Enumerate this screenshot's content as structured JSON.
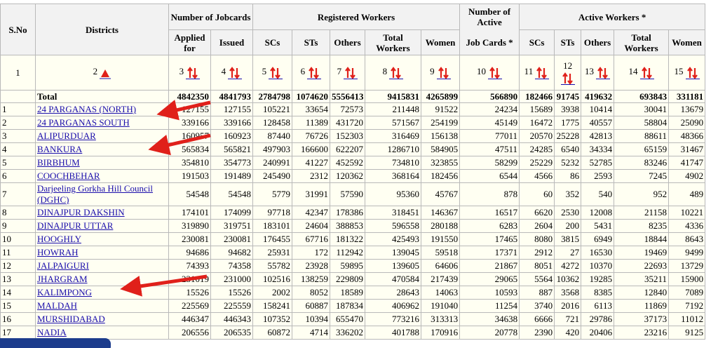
{
  "header": {
    "top": [
      "S.No",
      "Districts",
      "Number of Jobcards",
      "Registered Workers",
      "Number of Active",
      "Active Workers *"
    ],
    "sub": [
      "Applied for",
      "Issued",
      "SCs",
      "STs",
      "Others",
      "Total Workers",
      "Women",
      "Job Cards *",
      "SCs",
      "STs",
      "Others",
      "Total Workers",
      "Women"
    ],
    "index": [
      "1",
      "2",
      "3",
      "4",
      "5",
      "6",
      "7",
      "8",
      "9",
      "10",
      "11",
      "12",
      "13",
      "14",
      "15"
    ]
  },
  "total": {
    "label": "Total",
    "values": [
      4842350,
      4841793,
      2784798,
      1074620,
      5556413,
      9415831,
      4265899,
      566890,
      182466,
      91745,
      419632,
      693843,
      331181
    ]
  },
  "rows": [
    {
      "sno": "1",
      "district": "24 PARGANAS (NORTH)",
      "values": [
        127155,
        127155,
        105221,
        33654,
        72573,
        211448,
        91522,
        24234,
        15689,
        3938,
        10414,
        30041,
        13679
      ]
    },
    {
      "sno": "2",
      "district": "24 PARGANAS SOUTH",
      "values": [
        339166,
        339166,
        128458,
        11389,
        431720,
        571567,
        254199,
        45149,
        16472,
        1775,
        40557,
        58804,
        25090
      ]
    },
    {
      "sno": "3",
      "district": "ALIPURDUAR",
      "values": [
        160957,
        160923,
        87440,
        76726,
        152303,
        316469,
        156138,
        77011,
        20570,
        25228,
        42813,
        88611,
        48366
      ]
    },
    {
      "sno": "4",
      "district": "BANKURA",
      "values": [
        565834,
        565821,
        497903,
        166600,
        622207,
        1286710,
        584905,
        47511,
        24285,
        6540,
        34334,
        65159,
        31467
      ]
    },
    {
      "sno": "5",
      "district": "BIRBHUM",
      "values": [
        354810,
        354773,
        240991,
        41227,
        452592,
        734810,
        323855,
        58299,
        25229,
        5232,
        52785,
        83246,
        41747
      ]
    },
    {
      "sno": "6",
      "district": "COOCHBEHAR",
      "values": [
        191503,
        191489,
        245490,
        2312,
        120362,
        368164,
        182456,
        6544,
        4566,
        86,
        2593,
        7245,
        4902
      ]
    },
    {
      "sno": "7",
      "district": "Darjeeling Gorkha Hill Council (DGHC)",
      "values": [
        54548,
        54548,
        5779,
        31991,
        57590,
        95360,
        45767,
        878,
        60,
        352,
        540,
        952,
        489
      ]
    },
    {
      "sno": "8",
      "district": "DINAJPUR DAKSHIN",
      "values": [
        174101,
        174099,
        97718,
        42347,
        178386,
        318451,
        146367,
        16517,
        6620,
        2530,
        12008,
        21158,
        10221
      ]
    },
    {
      "sno": "9",
      "district": "DINAJPUR UTTAR",
      "values": [
        319890,
        319751,
        183101,
        24604,
        388853,
        596558,
        280188,
        6283,
        2604,
        200,
        5431,
        8235,
        4336
      ]
    },
    {
      "sno": "10",
      "district": "HOOGHLY",
      "values": [
        230081,
        230081,
        176455,
        67716,
        181322,
        425493,
        191550,
        17465,
        8080,
        3815,
        6949,
        18844,
        8643
      ]
    },
    {
      "sno": "11",
      "district": "HOWRAH",
      "values": [
        94686,
        94682,
        25931,
        172,
        112942,
        139045,
        59518,
        17371,
        2912,
        27,
        16530,
        19469,
        9499
      ]
    },
    {
      "sno": "12",
      "district": "JALPAIGURI",
      "values": [
        74393,
        74358,
        55782,
        23928,
        59895,
        139605,
        64606,
        21867,
        8051,
        4272,
        10370,
        22693,
        13729
      ]
    },
    {
      "sno": "13",
      "district": "JHARGRAM",
      "values": [
        231019,
        231000,
        102516,
        138259,
        229809,
        470584,
        217439,
        29065,
        5564,
        10362,
        19285,
        35211,
        15900
      ]
    },
    {
      "sno": "14",
      "district": "KALIMPONG",
      "values": [
        15526,
        15526,
        2002,
        8052,
        18589,
        28643,
        14063,
        10593,
        887,
        3568,
        8385,
        12840,
        7089
      ]
    },
    {
      "sno": "15",
      "district": "MALDAH",
      "values": [
        225569,
        225559,
        158241,
        60887,
        187834,
        406962,
        191040,
        11254,
        3740,
        2016,
        6113,
        11869,
        7192
      ]
    },
    {
      "sno": "16",
      "district": "MURSHIDABAD",
      "values": [
        446347,
        446343,
        107352,
        10394,
        655470,
        773216,
        313313,
        34638,
        6666,
        721,
        29786,
        37173,
        11012
      ]
    },
    {
      "sno": "17",
      "district": "NADIA",
      "values": [
        206556,
        206535,
        60872,
        4714,
        336202,
        401788,
        170916,
        20778,
        2390,
        420,
        20406,
        23216,
        9125
      ]
    }
  ]
}
